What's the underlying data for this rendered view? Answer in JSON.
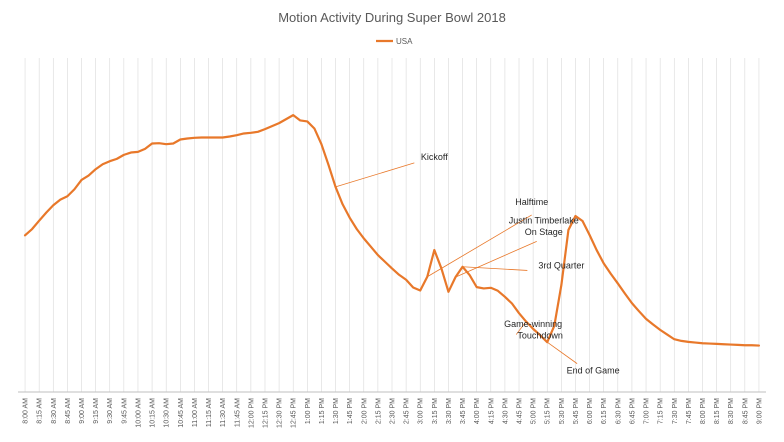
{
  "chart_data": {
    "type": "line",
    "title": "Motion Activity During Super Bowl 2018",
    "xlabel": "",
    "ylabel": "",
    "legend": "top-center",
    "grid": "vertical",
    "colors": {
      "series": "#e8782a",
      "text": "#595959",
      "grid": "#d9d9d9"
    },
    "categories": [
      "8:00 AM",
      "8:15 AM",
      "8:30 AM",
      "8:45 AM",
      "9:00 AM",
      "9:15 AM",
      "9:30 AM",
      "9:45 AM",
      "10:00 AM",
      "10:15 AM",
      "10:30 AM",
      "10:45 AM",
      "11:00 AM",
      "11:15 AM",
      "11:30 AM",
      "11:45 AM",
      "12:00 PM",
      "12:15 PM",
      "12:30 PM",
      "12:45 PM",
      "1:00 PM",
      "1:15 PM",
      "1:30 PM",
      "1:45 PM",
      "2:00 PM",
      "2:15 PM",
      "2:30 PM",
      "2:45 PM",
      "3:00 PM",
      "3:15 PM",
      "3:30 PM",
      "3:45 PM",
      "4:00 PM",
      "4:15 PM",
      "4:30 PM",
      "4:45 PM",
      "5:00 PM",
      "5:15 PM",
      "5:30 PM",
      "5:45 PM",
      "6:00 PM",
      "6:15 PM",
      "6:30 PM",
      "6:45 PM",
      "7:00 PM",
      "7:15 PM",
      "7:30 PM",
      "7:45 PM",
      "8:00 PM",
      "8:15 PM",
      "8:30 PM",
      "8:45 PM",
      "9:00 PM"
    ],
    "x": [
      0,
      1,
      2,
      3,
      4,
      5,
      6,
      7,
      8,
      9,
      10,
      11,
      12,
      13,
      14,
      15,
      16,
      17,
      18,
      19,
      20,
      21,
      22,
      23,
      24,
      25,
      26,
      27,
      28,
      29,
      30,
      31,
      32,
      33,
      34,
      35,
      36,
      37,
      38,
      39,
      40,
      41,
      42,
      43,
      44,
      45,
      46,
      47,
      48,
      49,
      50,
      51,
      52,
      53,
      54,
      55,
      56,
      57,
      58,
      59,
      60,
      61,
      62,
      63,
      64,
      65,
      66,
      67,
      68,
      69,
      70,
      71,
      72,
      73,
      74,
      75,
      76,
      77,
      78,
      79,
      80,
      81,
      82,
      83,
      84,
      85,
      86,
      87,
      88,
      89,
      90,
      91,
      92,
      93,
      94,
      95,
      96,
      97,
      98,
      99,
      100,
      101,
      102,
      103,
      104
    ],
    "series": [
      {
        "name": "USA",
        "values": [
          46.9,
          48.8,
          51.3,
          53.7,
          55.9,
          57.6,
          58.6,
          60.7,
          63.5,
          64.8,
          66.7,
          68.2,
          69.1,
          69.8,
          71.0,
          71.7,
          71.9,
          72.8,
          74.4,
          74.5,
          74.2,
          74.4,
          75.6,
          75.9,
          76.1,
          76.2,
          76.2,
          76.2,
          76.2,
          76.5,
          76.9,
          77.4,
          77.6,
          77.9,
          78.7,
          79.6,
          80.5,
          81.7,
          82.9,
          81.3,
          81.0,
          78.9,
          74.2,
          68.0,
          61.4,
          56.2,
          52.2,
          48.8,
          46.0,
          43.5,
          41.0,
          39.0,
          37.0,
          35.1,
          33.6,
          31.3,
          30.4,
          34.5,
          42.5,
          37.0,
          30.0,
          34.4,
          37.5,
          35.0,
          31.4,
          31.0,
          31.2,
          30.3,
          28.5,
          26.5,
          23.6,
          21.1,
          18.9,
          17.0,
          14.9,
          19.8,
          32.0,
          48.5,
          52.7,
          51.2,
          47.0,
          42.5,
          38.5,
          35.4,
          32.5,
          29.5,
          26.6,
          24.2,
          21.9,
          20.2,
          18.6,
          17.2,
          15.8,
          15.3,
          15.0,
          14.8,
          14.6,
          14.5,
          14.4,
          14.3,
          14.2,
          14.1,
          14.0,
          14.0,
          13.9
        ]
      }
    ],
    "annotations": [
      {
        "text": "Kickoff",
        "x": 58.0,
        "y": 69.5
      },
      {
        "text": "Halftime",
        "x": 71.8,
        "y": 56.0
      },
      {
        "text": "Justin Timberlake",
        "x": 73.5,
        "y": 50.5
      },
      {
        "text": "On Stage",
        "x": 73.5,
        "y": 47.0
      },
      {
        "text": "3rd Quarter",
        "x": 76.0,
        "y": 37.0
      },
      {
        "text": "Game-winning",
        "x": 72.0,
        "y": 19.5
      },
      {
        "text": "Touchdown",
        "x": 73.0,
        "y": 16.0
      },
      {
        "text": "End of Game",
        "x": 80.5,
        "y": 5.5
      }
    ],
    "ylim": [
      0,
      100
    ]
  }
}
